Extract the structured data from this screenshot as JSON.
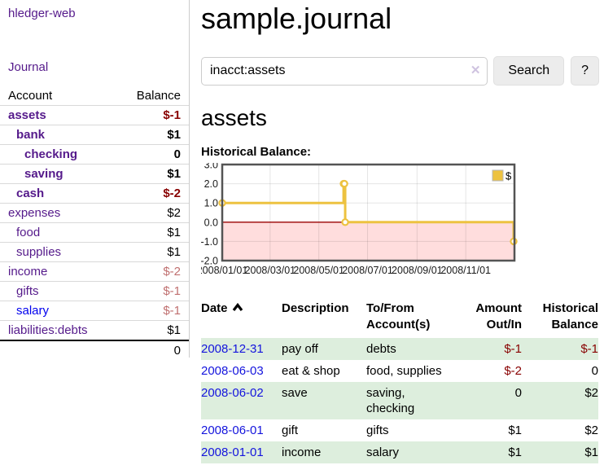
{
  "colors": {
    "accent_purple": "#551a8b",
    "link_blue": "#0000ee",
    "negative_strong": "#880000",
    "negative_muted": "#c07070",
    "row_stripe_green": "#ddeedd",
    "chart_line_gold": "#edc240",
    "chart_below_zero_pink": "#ffdddd",
    "chart_zero_line_red": "#990000",
    "chart_border_gray": "#545454"
  },
  "sidebar": {
    "app_title": "hledger-web",
    "nav": {
      "journal_label": "Journal"
    },
    "accounts_table": {
      "headers": {
        "account": "Account",
        "balance": "Balance"
      },
      "rows": [
        {
          "name": "assets",
          "level": 1,
          "bold": true,
          "balance": "$-1"
        },
        {
          "name": "bank",
          "level": 2,
          "bold": true,
          "balance": "$1"
        },
        {
          "name": "checking",
          "level": 3,
          "bold": true,
          "balance": "0"
        },
        {
          "name": "saving",
          "level": 3,
          "bold": true,
          "balance": "$1"
        },
        {
          "name": "cash",
          "level": 2,
          "bold": true,
          "balance": "$-2"
        },
        {
          "name": "expenses",
          "level": 1,
          "bold": false,
          "balance": "$2"
        },
        {
          "name": "food",
          "level": 2,
          "bold": false,
          "balance": "$1"
        },
        {
          "name": "supplies",
          "level": 2,
          "bold": false,
          "balance": "$1"
        },
        {
          "name": "income",
          "level": 1,
          "bold": false,
          "balance": "$-2"
        },
        {
          "name": "gifts",
          "level": 2,
          "bold": false,
          "balance": "$-1"
        },
        {
          "name": "salary",
          "level": 2,
          "bold": false,
          "balance": "$-1",
          "unvisited": true
        },
        {
          "name": "liabilities:debts",
          "level": 1,
          "bold": false,
          "balance": "$1"
        }
      ],
      "total": "0"
    }
  },
  "header": {
    "title": "sample.journal"
  },
  "search": {
    "query": "inacct:assets",
    "clear_icon": "✕",
    "button_label": "Search",
    "help_label": "?"
  },
  "account_page": {
    "heading": "assets",
    "chart_label": "Historical Balance:"
  },
  "chart_data": {
    "type": "line",
    "step": true,
    "title": "Historical Balance",
    "series": [
      {
        "name": "$",
        "points": [
          {
            "x": "2008-01-01",
            "y": 1
          },
          {
            "x": "2008-06-01",
            "y": 2
          },
          {
            "x": "2008-06-02",
            "y": 2
          },
          {
            "x": "2008-06-03",
            "y": 0
          },
          {
            "x": "2008-12-31",
            "y": -1
          }
        ]
      }
    ],
    "x_range": [
      "2008-01-01",
      "2009-01-01"
    ],
    "ylim": [
      -2,
      3
    ],
    "y_ticks": [
      "3.0",
      "2.0",
      "1.0",
      "0.0",
      "-1.0",
      "-2.0"
    ],
    "x_ticks": [
      {
        "label": "2008/01/01",
        "date": "2008-01-01"
      },
      {
        "label": "2008/03/01",
        "date": "2008-03-01"
      },
      {
        "label": "2008/05/01",
        "date": "2008-05-01"
      },
      {
        "label": "2008/07/01",
        "date": "2008-07-01"
      },
      {
        "label": "2008/09/01",
        "date": "2008-09-01"
      },
      {
        "label": "2008/11/01",
        "date": "2008-11-01"
      }
    ],
    "legend": {
      "label": "$",
      "position": "top-right"
    },
    "below_zero_shaded": true,
    "grid": true
  },
  "register": {
    "headers": {
      "date": "Date",
      "description": "Description",
      "accounts": "To/From Account(s)",
      "amount": "Amount Out/In",
      "balance": "Historical Balance"
    },
    "sort_icon": "caret-up-icon",
    "rows": [
      {
        "date": "2008-12-31",
        "description": "pay off",
        "accounts": "debts",
        "amount": "$-1",
        "balance": "$-1"
      },
      {
        "date": "2008-06-03",
        "description": "eat & shop",
        "accounts": "food, supplies",
        "amount": "$-2",
        "balance": "0"
      },
      {
        "date": "2008-06-02",
        "description": "save",
        "accounts": "saving, checking",
        "amount": "0",
        "balance": "$2"
      },
      {
        "date": "2008-06-01",
        "description": "gift",
        "accounts": "gifts",
        "amount": "$1",
        "balance": "$2"
      },
      {
        "date": "2008-01-01",
        "description": "income",
        "accounts": "salary",
        "amount": "$1",
        "balance": "$1"
      }
    ]
  }
}
